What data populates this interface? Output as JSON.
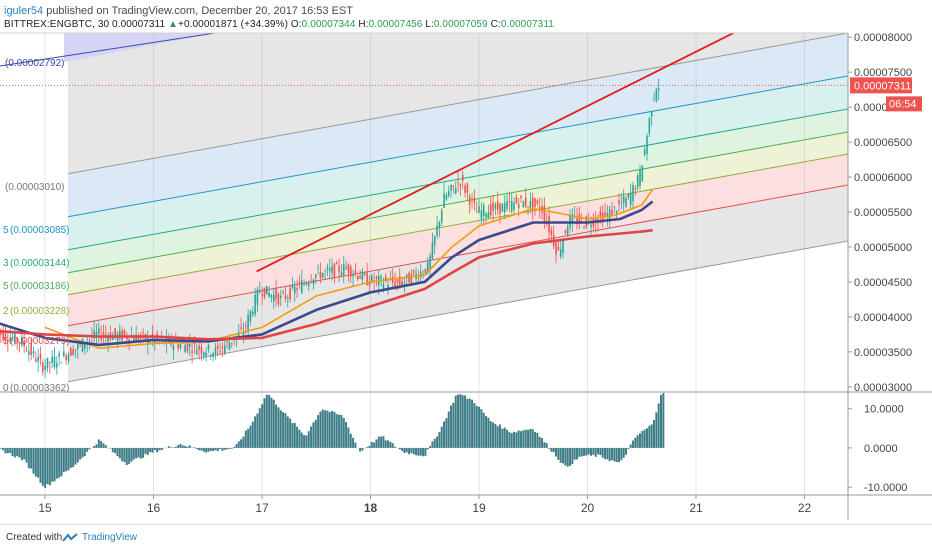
{
  "header": {
    "user": "iguler54",
    "published": " published on TradingView.com, December 20, 2017 16:53 EST",
    "symbol": "BITTREX:ENGBTC, 30",
    "last": "0.00007311",
    "arrow": "▲",
    "change": "+0.00001871 (+34.39%)",
    "o_label": "O:",
    "o_value": "0.00007344",
    "h_label": "H:",
    "h_value": "0.00007456",
    "l_label": "L:",
    "l_value": "0.00007059",
    "c_label": "C:",
    "c_value": "0.00007311"
  },
  "footer": {
    "created": "Created with",
    "brand": "TradingView"
  },
  "colors": {
    "candle_up": "#26a69a",
    "candle_down": "#ef5350",
    "ma_orange": "#f39c12",
    "ma_blue": "#3b4a8a",
    "ma_red": "#e04444",
    "trend_red": "#e01b1b",
    "histogram": "#3f7d87",
    "price_badge": "#ef5350"
  },
  "chart_data": {
    "type": "line",
    "price_axis": {
      "ticks": [
        "0.00008000",
        "0.00007500",
        "0.00007311",
        "0.00007000",
        "0.00006500",
        "0.00006000",
        "0.00005500",
        "0.00005000",
        "0.00004500",
        "0.00004000",
        "0.00003500",
        "0.00003000"
      ],
      "range": [
        2.94e-05,
        8.06e-05
      ]
    },
    "price_badge": "0.00007311",
    "countdown_badge": "06:54",
    "time_axis": {
      "ticks": [
        "15",
        "16",
        "17",
        "18",
        "19",
        "20",
        "21",
        "22"
      ],
      "bold_tick": "18"
    },
    "fib_labels": [
      {
        "text": "(0.00002792)",
        "color": "#3949ab"
      },
      {
        "text": "(0.00003010)",
        "color": "#777777"
      },
      {
        "text": "(0.00003085)",
        "color": "#2196c8"
      },
      {
        "text": "(0.00003144)",
        "color": "#22a884"
      },
      {
        "text": "(0.00003186)",
        "color": "#4caf50"
      },
      {
        "text": "(0.00003228)",
        "color": "#9aa83a"
      },
      {
        "text": "(0.00003279)",
        "color": "#e05050"
      },
      {
        "text": "(0.00003362)",
        "color": "#777777"
      }
    ],
    "fib_prefixes": [
      "",
      "",
      "5",
      "3",
      "5",
      "2",
      "5",
      "0"
    ],
    "oscillator_axis": {
      "ticks": [
        "10.0000",
        "0.0000",
        "-10.0000"
      ],
      "range": [
        -12,
        14
      ]
    },
    "ma_series": [
      {
        "color": "orange",
        "x": [
          15.0,
          15.5,
          16.0,
          16.5,
          17.0,
          17.5,
          18.0,
          18.5,
          18.75,
          19.0,
          19.5,
          19.75,
          20.0,
          20.25,
          20.5,
          20.6
        ],
        "y": [
          3.85e-05,
          3.55e-05,
          3.62e-05,
          3.65e-05,
          3.85e-05,
          4.3e-05,
          4.5e-05,
          4.6e-05,
          5e-05,
          5.3e-05,
          5.55e-05,
          5.48e-05,
          5.4e-05,
          5.45e-05,
          5.6e-05,
          5.82e-05
        ]
      },
      {
        "color": "blue",
        "x": [
          14.55,
          15.0,
          15.5,
          16.0,
          16.5,
          17.0,
          17.5,
          18.0,
          18.5,
          18.75,
          19.0,
          19.5,
          20.0,
          20.3,
          20.5,
          20.6
        ],
        "y": [
          3.92e-05,
          3.7e-05,
          3.6e-05,
          3.67e-05,
          3.65e-05,
          3.75e-05,
          4.1e-05,
          4.35e-05,
          4.5e-05,
          4.85e-05,
          5.1e-05,
          5.35e-05,
          5.35e-05,
          5.4e-05,
          5.53e-05,
          5.65e-05
        ]
      },
      {
        "color": "red",
        "x": [
          14.55,
          15.0,
          15.5,
          16.0,
          16.5,
          17.0,
          17.5,
          18.0,
          18.5,
          18.75,
          19.0,
          19.5,
          20.0,
          20.5,
          20.6
        ],
        "y": [
          3.8e-05,
          3.75e-05,
          3.72e-05,
          3.72e-05,
          3.68e-05,
          3.7e-05,
          3.9e-05,
          4.15e-05,
          4.4e-05,
          4.63e-05,
          4.85e-05,
          5.05e-05,
          5.15e-05,
          5.22e-05,
          5.24e-05
        ]
      }
    ],
    "price_path": {
      "x": [
        14.55,
        14.8,
        15.0,
        15.2,
        15.5,
        15.8,
        16.0,
        16.3,
        16.6,
        16.85,
        17.0,
        17.2,
        17.5,
        17.8,
        18.0,
        18.3,
        18.55,
        18.7,
        18.85,
        19.0,
        19.2,
        19.4,
        19.6,
        19.75,
        19.85,
        20.0,
        20.2,
        20.4,
        20.5,
        20.55,
        20.6,
        20.65
      ],
      "y": [
        3.8e-05,
        3.65e-05,
        3.3e-05,
        3.45e-05,
        3.75e-05,
        3.72e-05,
        3.67e-05,
        3.6e-05,
        3.5e-05,
        3.8e-05,
        4.4e-05,
        4.25e-05,
        4.6e-05,
        4.7e-05,
        4.52e-05,
        4.48e-05,
        4.7e-05,
        5.7e-05,
        5.95e-05,
        5.5e-05,
        5.55e-05,
        5.65e-05,
        5.55e-05,
        4.9e-05,
        5.4e-05,
        5.35e-05,
        5.45e-05,
        5.7e-05,
        6e-05,
        6.4e-05,
        6.9e-05,
        7.31e-05
      ]
    },
    "trend_line": {
      "x": [
        16.95,
        21.5
      ],
      "y": [
        4.65e-05,
        8.18e-05
      ]
    },
    "oscillator": {
      "x": [
        14.55,
        14.8,
        15.0,
        15.25,
        15.5,
        15.75,
        16.0,
        16.25,
        16.5,
        16.75,
        16.9,
        17.05,
        17.2,
        17.4,
        17.55,
        17.75,
        17.9,
        18.1,
        18.3,
        18.5,
        18.65,
        18.8,
        18.95,
        19.1,
        19.3,
        19.5,
        19.65,
        19.8,
        19.95,
        20.1,
        20.3,
        20.45,
        20.6,
        20.7
      ],
      "y": [
        0,
        -3,
        -10,
        -5,
        2,
        -4,
        -1,
        1,
        -1,
        0,
        6,
        14,
        9,
        3,
        10,
        8,
        -1,
        3,
        -1,
        -2,
        5,
        14,
        12,
        7,
        4,
        5,
        0,
        -5,
        -2,
        -2,
        -4,
        3,
        6,
        16
      ]
    }
  }
}
